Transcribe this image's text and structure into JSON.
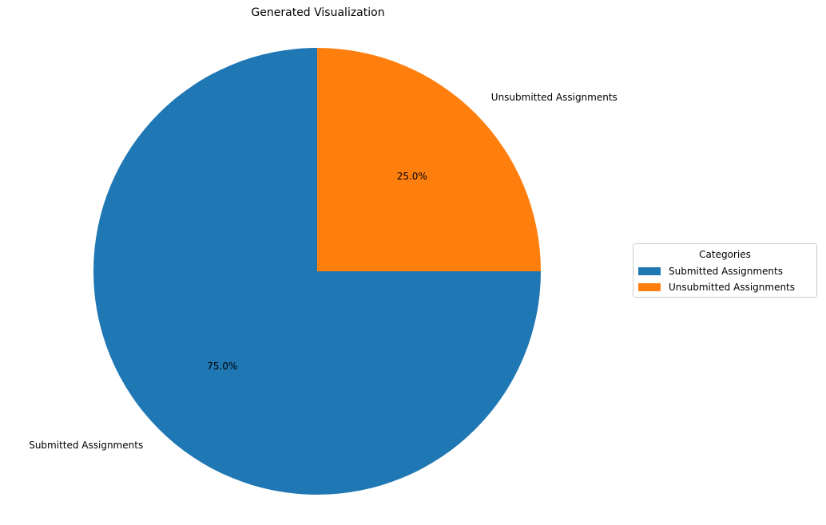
{
  "chart_data": {
    "type": "pie",
    "title": "Generated Visualization",
    "labels": [
      "Submitted Assignments",
      "Unsubmitted Assignments"
    ],
    "values": [
      75.0,
      25.0
    ],
    "percent_labels": [
      "75.0%",
      "25.0%"
    ],
    "colors": [
      "#1f77b4",
      "#ff7f0e"
    ],
    "start_angle_deg": 90,
    "direction": "counterclockwise",
    "legend": {
      "title": "Categories",
      "placement": "right",
      "items": [
        "Submitted Assignments",
        "Unsubmitted Assignments"
      ]
    }
  }
}
